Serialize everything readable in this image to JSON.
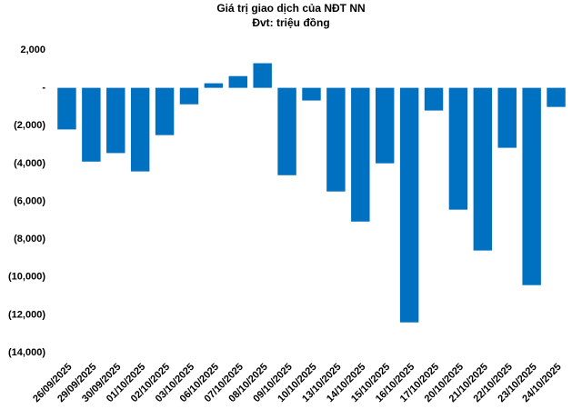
{
  "chart_data": {
    "type": "bar",
    "title": "Giá trị giao dịch của NĐT NN",
    "subtitle": "Đvt: triệu đồng",
    "categories": [
      "26/09/2025",
      "29/09/2025",
      "30/09/2025",
      "01/10/2025",
      "02/10/2025",
      "03/10/2025",
      "06/10/2025",
      "07/10/2025",
      "08/10/2025",
      "09/10/2025",
      "10/10/2025",
      "13/10/2025",
      "14/10/2025",
      "15/10/2025",
      "16/10/2025",
      "17/10/2025",
      "20/10/2025",
      "21/10/2025",
      "22/10/2025",
      "23/10/2025",
      "24/10/2025"
    ],
    "values": [
      -2200,
      -3900,
      -3450,
      -4420,
      -2500,
      -870,
      240,
      620,
      1300,
      -4620,
      -670,
      -5480,
      -7070,
      -3990,
      -12400,
      -1200,
      -6440,
      -8600,
      -3170,
      -10430,
      -1010
    ],
    "color": "#0070c0",
    "ylim": [
      -14000,
      2000
    ],
    "yticks": [
      {
        "value": 2000,
        "label": "2,000"
      },
      {
        "value": 0,
        "label": "-"
      },
      {
        "value": -2000,
        "label": "(2,000)"
      },
      {
        "value": -4000,
        "label": "(4,000)"
      },
      {
        "value": -6000,
        "label": "(6,000)"
      },
      {
        "value": -8000,
        "label": "(8,000)"
      },
      {
        "value": -10000,
        "label": "(10,000)"
      },
      {
        "value": -12000,
        "label": "(12,000)"
      },
      {
        "value": -14000,
        "label": "(14,000)"
      }
    ],
    "grid": false
  }
}
